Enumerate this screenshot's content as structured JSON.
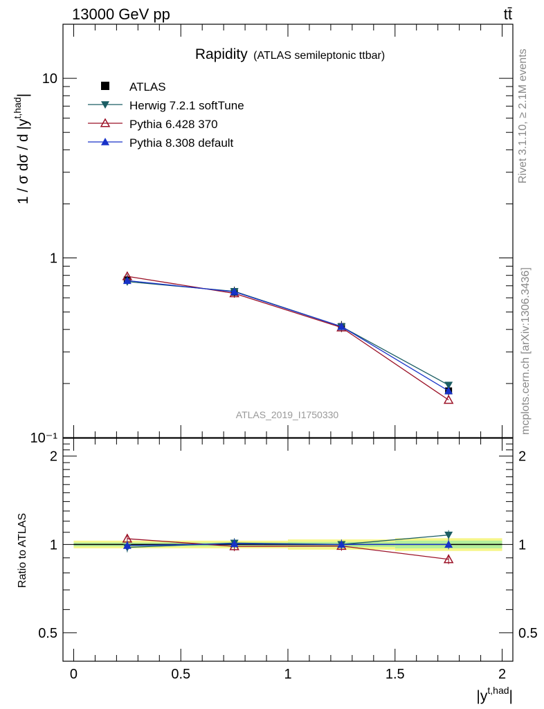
{
  "header": {
    "left": "13000 GeV pp",
    "right": "tt̄"
  },
  "side_labels": {
    "rivet": "Rivet 3.1.10, ≥ 2.1M events",
    "mcplots": "mcplots.cern.ch [arXiv:1306.3436]"
  },
  "chart_data": {
    "type": "line",
    "title": "Rapidity",
    "subtitle": "(ATLAS semileptonic ttbar)",
    "watermark": "ATLAS_2019_I1750330",
    "xlabel_base": "|y",
    "xlabel_sup": "t,had",
    "xlabel_end": "|",
    "ylabel_base": "1 / σ dσ / d |y",
    "ylabel_sup": "t,had",
    "ylabel_end": "|",
    "ratio_ylabel": "Ratio to ATLAS",
    "xlim": [
      -0.05,
      2.05
    ],
    "ylim": [
      0.1,
      20
    ],
    "yscale": "log",
    "ratio_ylim": [
      0.4,
      2.3
    ],
    "ratio_yscale": "log",
    "x_ticks": [
      "0",
      "0.5",
      "1",
      "1.5",
      "2"
    ],
    "y_ticks": [
      "10⁻¹",
      "1",
      "10"
    ],
    "ratio_ticks": [
      "0.5",
      "1",
      "2"
    ],
    "legend_position": "top-left",
    "x": [
      0.25,
      0.75,
      1.25,
      1.75
    ],
    "bin_edges": [
      0,
      0.5,
      1.0,
      1.5,
      2.0
    ],
    "data": {
      "name": "ATLAS",
      "values": [
        0.755,
        0.645,
        0.415,
        0.182
      ],
      "rel_band": [
        0.03,
        0.03,
        0.04,
        0.05
      ],
      "rel_band_inner": [
        0.015,
        0.015,
        0.02,
        0.03
      ]
    },
    "series": [
      {
        "name": "Herwig 7.2.1 softTune",
        "color": "#1b5d63",
        "marker": "triangle-down-filled",
        "values": [
          0.738,
          0.652,
          0.415,
          0.196
        ],
        "ratio": [
          0.977,
          1.011,
          1.0,
          1.077
        ]
      },
      {
        "name": "Pythia 6.428 370",
        "color": "#9b1126",
        "marker": "triangle-up-open",
        "values": [
          0.79,
          0.635,
          0.41,
          0.162
        ],
        "ratio": [
          1.046,
          0.985,
          0.988,
          0.89
        ]
      },
      {
        "name": "Pythia 8.308 default",
        "color": "#1732c8",
        "marker": "triangle-up-filled",
        "values": [
          0.748,
          0.648,
          0.415,
          0.182
        ],
        "ratio": [
          0.991,
          1.005,
          1.0,
          1.0
        ]
      }
    ]
  }
}
